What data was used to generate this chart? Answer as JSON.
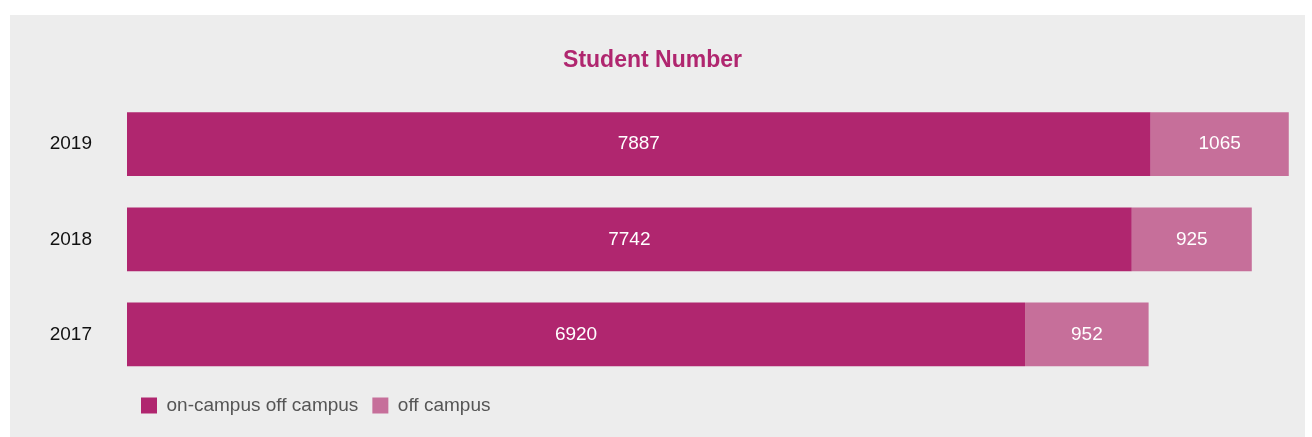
{
  "chart_data": {
    "type": "bar",
    "title": "Student Number",
    "orientation": "horizontal",
    "stacked": true,
    "categories": [
      "2019",
      "2018",
      "2017"
    ],
    "series": [
      {
        "name": "on-campus off campus",
        "color": "#b0266f",
        "values": [
          7887,
          7742,
          6920
        ]
      },
      {
        "name": "off campus",
        "color": "#c66f9a",
        "values": [
          1065,
          925,
          952
        ]
      }
    ],
    "data_labels": true,
    "legend": "bottom left",
    "tick_labels": "y"
  }
}
